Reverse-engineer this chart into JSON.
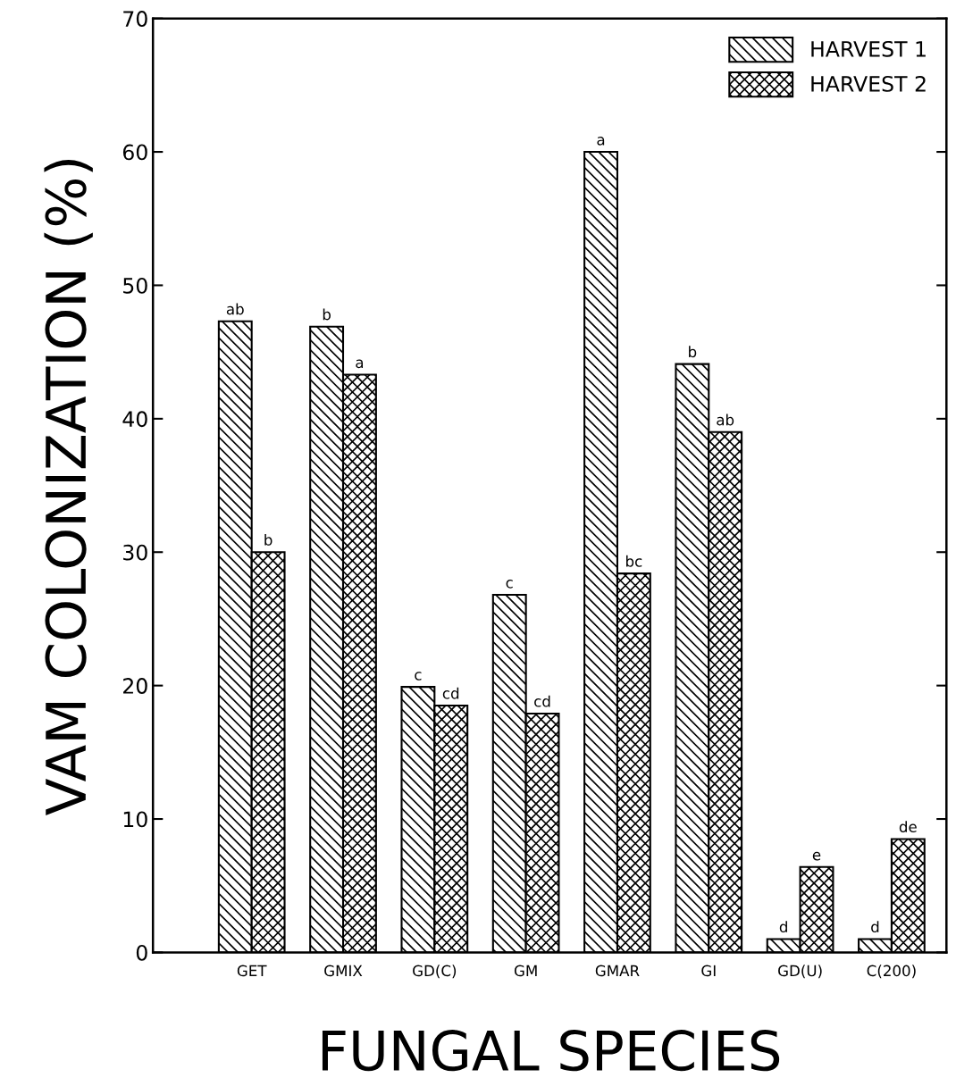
{
  "chart_data": {
    "type": "bar",
    "xlabel": "FUNGAL SPECIES",
    "ylabel": "VAM COLONIZATION (%)",
    "categories": [
      "GET",
      "GMIX",
      "GD(C)",
      "GM",
      "GMAR",
      "GI",
      "GD(U)",
      "C(200)"
    ],
    "series": [
      {
        "name": "HARVEST 1",
        "color": "#000000",
        "values": [
          47.3,
          46.9,
          19.9,
          26.8,
          60.0,
          44.1,
          1.0,
          1.0
        ],
        "value_labels": [
          "ab",
          "b",
          "c",
          "c",
          "a",
          "b",
          "d",
          "d"
        ]
      },
      {
        "name": "HARVEST 2",
        "color": "#000000",
        "values": [
          30.0,
          43.3,
          18.5,
          17.9,
          28.4,
          39.0,
          6.4,
          8.5
        ],
        "value_labels": [
          "b",
          "a",
          "cd",
          "cd",
          "bc",
          "ab",
          "e",
          "de"
        ]
      }
    ],
    "ylim": [
      0,
      70
    ],
    "yticks": [
      0,
      10,
      20,
      30,
      40,
      50,
      60,
      70
    ],
    "legend": "top right",
    "grid": false
  }
}
